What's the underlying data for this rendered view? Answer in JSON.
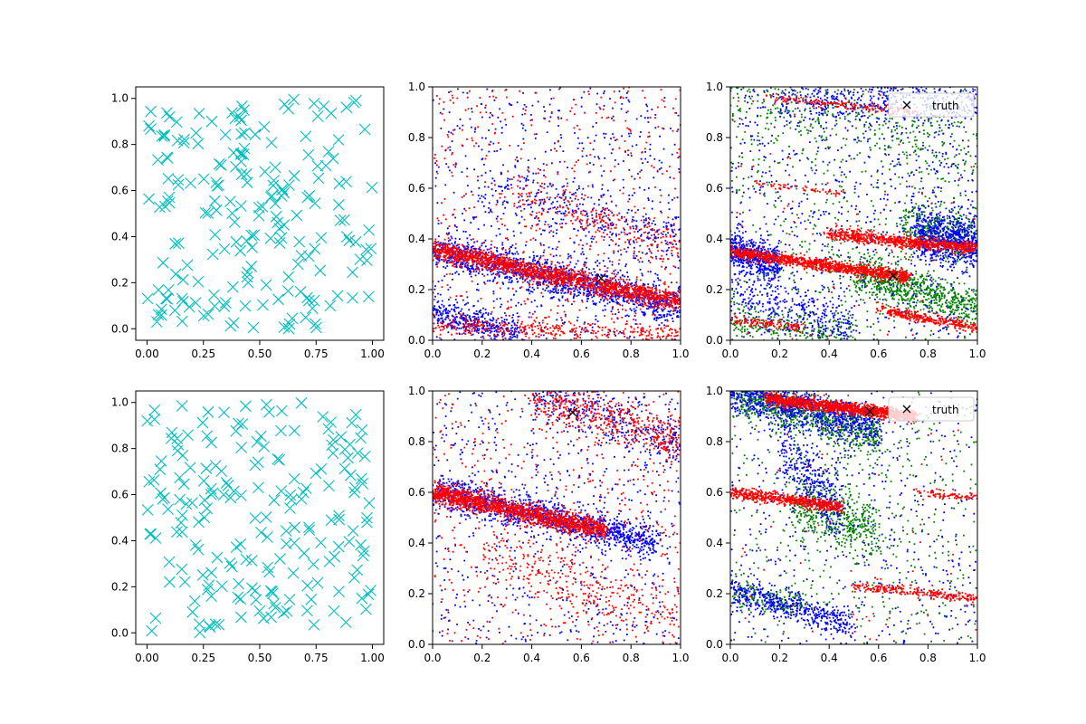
{
  "figure": {
    "background": "#ffffff",
    "colors": {
      "uniform": "#00bfbf",
      "red": "#ff0000",
      "blue": "#0000ff",
      "green": "#008000",
      "truth": "#000000"
    }
  },
  "chart_data": [
    {
      "panel": "top-left",
      "type": "scatter",
      "xlim": [
        -0.05,
        1.05
      ],
      "ylim": [
        -0.05,
        1.05
      ],
      "xticks": [
        "0.00",
        "0.25",
        "0.50",
        "0.75",
        "1.00"
      ],
      "yticks": [
        "0.0",
        "0.2",
        "0.4",
        "0.6",
        "0.8",
        "1.0"
      ],
      "series": [
        {
          "color": "#00bfbf",
          "marker": "x-large",
          "distribution": "uniform",
          "count": 200,
          "seed": 11
        }
      ]
    },
    {
      "panel": "top-middle",
      "type": "scatter",
      "xlim": [
        0,
        1
      ],
      "ylim": [
        0,
        1
      ],
      "xticks": [
        "0.0",
        "0.2",
        "0.4",
        "0.6",
        "0.8",
        "1.0"
      ],
      "yticks": [
        "0.0",
        "0.2",
        "0.4",
        "0.6",
        "0.8",
        "1.0"
      ],
      "series": [
        {
          "color": "#0000ff",
          "marker": "dot",
          "seed": 21,
          "bands": [
            {
              "x0": 0.0,
              "x1": 1.0,
              "y0": 0.36,
              "y1": 0.13,
              "spread": 0.035,
              "count": 1300
            },
            {
              "x0": 0.0,
              "x1": 0.35,
              "y0": 0.11,
              "y1": 0.03,
              "spread": 0.03,
              "count": 350
            },
            {
              "x0": 0.2,
              "x1": 1.0,
              "y0": 0.62,
              "y1": 0.38,
              "spread": 0.07,
              "count": 300
            }
          ],
          "noise": 700
        },
        {
          "color": "#ff0000",
          "marker": "dot",
          "seed": 22,
          "bands": [
            {
              "x0": 0.0,
              "x1": 1.0,
              "y0": 0.36,
              "y1": 0.15,
              "spread": 0.02,
              "count": 1700
            },
            {
              "x0": 0.0,
              "x1": 1.0,
              "y0": 0.06,
              "y1": 0.02,
              "spread": 0.02,
              "count": 350
            },
            {
              "x0": 0.3,
              "x1": 1.0,
              "y0": 0.58,
              "y1": 0.38,
              "spread": 0.05,
              "count": 250
            }
          ],
          "noise": 500
        }
      ],
      "truth": {
        "x": 0.68,
        "y": 0.245
      }
    },
    {
      "panel": "top-right",
      "type": "scatter",
      "xlim": [
        0,
        1
      ],
      "ylim": [
        0,
        1
      ],
      "xticks": [
        "0.0",
        "0.2",
        "0.4",
        "0.6",
        "0.8",
        "1.0"
      ],
      "yticks": [
        "0.0",
        "0.2",
        "0.4",
        "0.6",
        "0.8",
        "1.0"
      ],
      "legend": {
        "label": "truth",
        "loc": "upper right"
      },
      "series": [
        {
          "color": "#008000",
          "marker": "dot",
          "seed": 31,
          "bands": [
            {
              "x0": 0.5,
              "x1": 1.0,
              "y0": 0.27,
              "y1": 0.12,
              "spread": 0.04,
              "count": 700
            },
            {
              "x0": 0.0,
              "x1": 0.5,
              "y0": 0.08,
              "y1": 0.02,
              "spread": 0.03,
              "count": 250
            },
            {
              "x0": 0.7,
              "x1": 1.0,
              "y0": 0.45,
              "y1": 0.4,
              "spread": 0.05,
              "count": 350
            },
            {
              "x0": 0.0,
              "x1": 1.0,
              "y0": 0.98,
              "y1": 0.75,
              "spread": 0.08,
              "count": 300
            }
          ],
          "noise": 600
        },
        {
          "color": "#0000ff",
          "marker": "dot",
          "seed": 32,
          "bands": [
            {
              "x0": 0.0,
              "x1": 0.2,
              "y0": 0.36,
              "y1": 0.3,
              "spread": 0.035,
              "count": 500
            },
            {
              "x0": 0.75,
              "x1": 1.0,
              "y0": 0.42,
              "y1": 0.38,
              "spread": 0.05,
              "count": 700
            },
            {
              "x0": 0.2,
              "x1": 1.0,
              "y0": 0.95,
              "y1": 0.95,
              "spread": 0.05,
              "count": 400
            },
            {
              "x0": 0.0,
              "x1": 0.5,
              "y0": 0.2,
              "y1": 0.05,
              "spread": 0.05,
              "count": 300
            }
          ],
          "noise": 800
        },
        {
          "color": "#ff0000",
          "marker": "dot",
          "seed": 33,
          "bands": [
            {
              "x0": 0.0,
              "x1": 0.72,
              "y0": 0.35,
              "y1": 0.25,
              "spread": 0.012,
              "count": 1100
            },
            {
              "x0": 0.4,
              "x1": 1.0,
              "y0": 0.42,
              "y1": 0.36,
              "spread": 0.012,
              "count": 800
            },
            {
              "x0": 0.6,
              "x1": 1.0,
              "y0": 0.12,
              "y1": 0.05,
              "spread": 0.01,
              "count": 300
            },
            {
              "x0": 0.0,
              "x1": 0.3,
              "y0": 0.08,
              "y1": 0.05,
              "spread": 0.01,
              "count": 120
            },
            {
              "x0": 0.15,
              "x1": 0.75,
              "y0": 0.96,
              "y1": 0.9,
              "spread": 0.008,
              "count": 180
            },
            {
              "x0": 0.1,
              "x1": 0.45,
              "y0": 0.62,
              "y1": 0.58,
              "spread": 0.006,
              "count": 60
            }
          ],
          "noise": 60
        }
      ],
      "truth": {
        "x": 0.66,
        "y": 0.255
      }
    },
    {
      "panel": "bottom-left",
      "type": "scatter",
      "xlim": [
        -0.05,
        1.05
      ],
      "ylim": [
        -0.05,
        1.05
      ],
      "xticks": [
        "0.00",
        "0.25",
        "0.50",
        "0.75",
        "1.00"
      ],
      "yticks": [
        "0.0",
        "0.2",
        "0.4",
        "0.6",
        "0.8",
        "1.0"
      ],
      "series": [
        {
          "color": "#00bfbf",
          "marker": "x-large",
          "distribution": "uniform",
          "count": 200,
          "seed": 41
        }
      ]
    },
    {
      "panel": "bottom-middle",
      "type": "scatter",
      "xlim": [
        0,
        1
      ],
      "ylim": [
        0,
        1
      ],
      "xticks": [
        "0.0",
        "0.2",
        "0.4",
        "0.6",
        "0.8",
        "1.0"
      ],
      "yticks": [
        "0.0",
        "0.2",
        "0.4",
        "0.6",
        "0.8",
        "1.0"
      ],
      "series": [
        {
          "color": "#0000ff",
          "marker": "dot",
          "seed": 51,
          "bands": [
            {
              "x0": 0.0,
              "x1": 0.9,
              "y0": 0.61,
              "y1": 0.4,
              "spread": 0.035,
              "count": 1200
            },
            {
              "x0": 0.4,
              "x1": 1.0,
              "y0": 0.99,
              "y1": 0.8,
              "spread": 0.05,
              "count": 300
            }
          ],
          "noise": 700
        },
        {
          "color": "#ff0000",
          "marker": "dot",
          "seed": 52,
          "bands": [
            {
              "x0": 0.0,
              "x1": 0.7,
              "y0": 0.6,
              "y1": 0.45,
              "spread": 0.02,
              "count": 1500
            },
            {
              "x0": 0.4,
              "x1": 1.0,
              "y0": 1.0,
              "y1": 0.8,
              "spread": 0.05,
              "count": 500
            },
            {
              "x0": 0.2,
              "x1": 1.0,
              "y0": 0.35,
              "y1": 0.1,
              "spread": 0.06,
              "count": 300
            }
          ],
          "noise": 500
        }
      ],
      "truth": {
        "x": 0.565,
        "y": 0.915
      }
    },
    {
      "panel": "bottom-right",
      "type": "scatter",
      "xlim": [
        0,
        1
      ],
      "ylim": [
        0,
        1
      ],
      "xticks": [
        "0.0",
        "0.2",
        "0.4",
        "0.6",
        "0.8",
        "1.0"
      ],
      "yticks": [
        "0.0",
        "0.2",
        "0.4",
        "0.6",
        "0.8",
        "1.0"
      ],
      "legend": {
        "label": "truth",
        "loc": "upper right"
      },
      "series": [
        {
          "color": "#008000",
          "marker": "dot",
          "seed": 61,
          "bands": [
            {
              "x0": 0.0,
              "x1": 0.6,
              "y0": 1.0,
              "y1": 0.82,
              "spread": 0.04,
              "count": 800
            },
            {
              "x0": 0.25,
              "x1": 0.6,
              "y0": 0.55,
              "y1": 0.45,
              "spread": 0.06,
              "count": 450
            },
            {
              "x0": 0.0,
              "x1": 0.3,
              "y0": 0.2,
              "y1": 0.15,
              "spread": 0.03,
              "count": 150
            }
          ],
          "noise": 500
        },
        {
          "color": "#0000ff",
          "marker": "dot",
          "seed": 62,
          "bands": [
            {
              "x0": 0.0,
              "x1": 0.6,
              "y0": 1.0,
              "y1": 0.85,
              "spread": 0.04,
              "count": 900
            },
            {
              "x0": 0.0,
              "x1": 0.5,
              "y0": 0.21,
              "y1": 0.08,
              "spread": 0.03,
              "count": 450
            },
            {
              "x0": 0.2,
              "x1": 0.45,
              "y0": 0.8,
              "y1": 0.5,
              "spread": 0.07,
              "count": 350
            }
          ],
          "noise": 500
        },
        {
          "color": "#ff0000",
          "marker": "dot",
          "seed": 63,
          "bands": [
            {
              "x0": 0.15,
              "x1": 0.75,
              "y0": 0.97,
              "y1": 0.9,
              "spread": 0.012,
              "count": 1200
            },
            {
              "x0": 0.0,
              "x1": 0.45,
              "y0": 0.6,
              "y1": 0.54,
              "spread": 0.012,
              "count": 600
            },
            {
              "x0": 0.5,
              "x1": 1.0,
              "y0": 0.23,
              "y1": 0.18,
              "spread": 0.01,
              "count": 250
            },
            {
              "x0": 0.75,
              "x1": 1.0,
              "y0": 0.6,
              "y1": 0.58,
              "spread": 0.008,
              "count": 80
            }
          ],
          "noise": 60
        }
      ],
      "truth": {
        "x": 0.565,
        "y": 0.92
      }
    }
  ]
}
